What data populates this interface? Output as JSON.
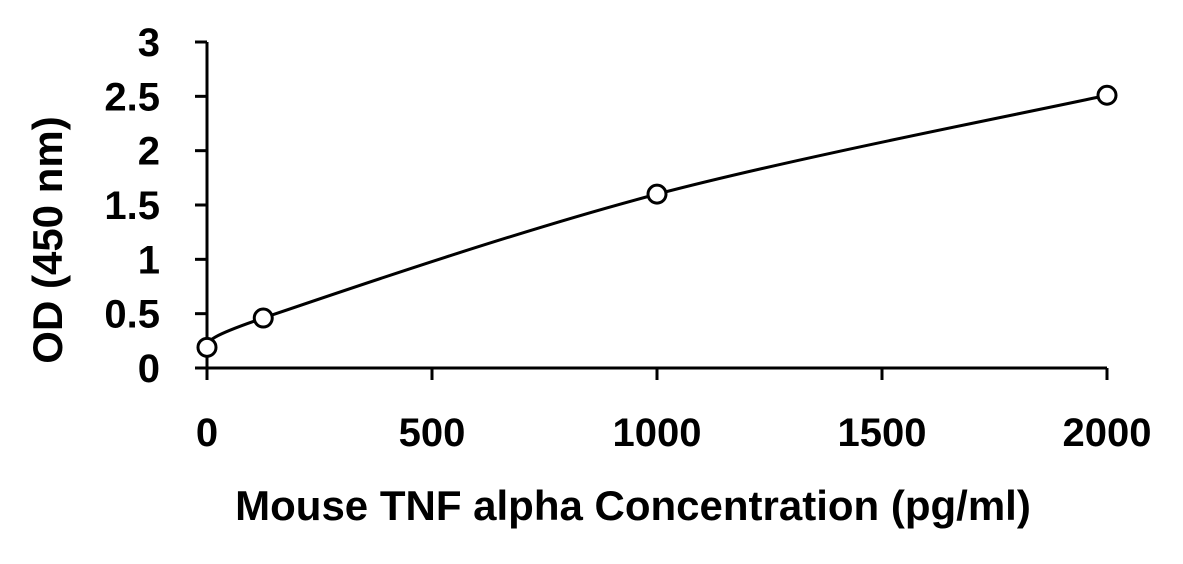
{
  "chart_data": {
    "type": "scatter",
    "title": "",
    "xlabel": "Mouse TNF alpha Concentration (pg/ml)",
    "ylabel": "OD (450 nm)",
    "xlim": [
      0,
      2000
    ],
    "ylim": [
      0,
      3
    ],
    "x_ticks": [
      "0",
      "500",
      "1000",
      "1500",
      "2000"
    ],
    "y_ticks": [
      "0",
      "0.5",
      "1",
      "1.5",
      "2",
      "2.5",
      "3"
    ],
    "grid": false,
    "legend": "none",
    "marker": "open-circle",
    "colors": {
      "line": "#000000",
      "marker": "#000000",
      "background": "#ffffff"
    },
    "series": [
      {
        "x": [
          0,
          125,
          1000,
          2000
        ],
        "y": [
          0.19,
          0.46,
          1.6,
          2.51
        ],
        "fit": "smooth-curve"
      }
    ]
  }
}
